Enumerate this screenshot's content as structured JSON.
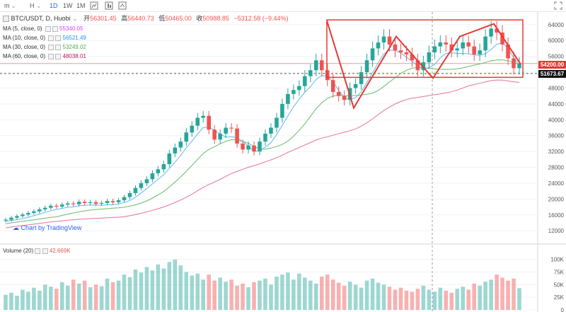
{
  "toolbar": {
    "items": [
      "m",
      "H",
      "1D",
      "1W",
      "1M"
    ],
    "active": "1D"
  },
  "header": {
    "symbol": "BTC/USDT, D, Huobi",
    "open_label": "开",
    "open": "56301.45",
    "high_label": "高",
    "high": "56440.73",
    "low_label": "低",
    "low": "50465.00",
    "close_label": "收",
    "close": "50988.85",
    "change": "−5312.58 (−9.44%)"
  },
  "indicators": [
    {
      "label": "MA (5, close, 0)",
      "value": "55340.05",
      "color": "#e040fb"
    },
    {
      "label": "MA (10, close, 0)",
      "value": "56521.49",
      "color": "#2196f3"
    },
    {
      "label": "MA (30, close, 0)",
      "value": "53249.02",
      "color": "#4caf50"
    },
    {
      "label": "MA (60, close, 0)",
      "value": "48038.01",
      "color": "#c2185b"
    }
  ],
  "volume_legend": {
    "label": "Volume (20)",
    "value": "42.669K",
    "color": "#ef5350"
  },
  "watermark": "Chart by TradingView",
  "price_tags": {
    "upper": "54200.00",
    "lower": "51673.67"
  },
  "colors": {
    "up": "#26a69a",
    "down": "#ef5350",
    "pattern": "#e53935",
    "ma5": "#e040fb",
    "ma10": "#64b5f6",
    "ma30": "#66bb6a",
    "ma60": "#e57399"
  },
  "chart_data": {
    "type": "candlestick",
    "price_axis_ticks": [
      12000,
      16000,
      20000,
      24000,
      28000,
      32000,
      36000,
      40000,
      44000,
      48000,
      52000,
      56000,
      60000,
      64000
    ],
    "price_range": [
      9000,
      67000
    ],
    "volume_axis_ticks": [
      "0",
      "25K",
      "50K",
      "75K",
      "100K"
    ],
    "volume_range": [
      0,
      115
    ],
    "series": [
      {
        "name": "price_close_approx",
        "values": [
          14800,
          15300,
          15700,
          16100,
          16500,
          16900,
          17400,
          17800,
          18300,
          18100,
          18600,
          18900,
          18700,
          19300,
          19000,
          19200,
          18800,
          19000,
          19500,
          19200,
          19700,
          20500,
          21500,
          22800,
          24000,
          25000,
          26500,
          27500,
          28800,
          31500,
          33000,
          34500,
          36800,
          38500,
          40500,
          41000,
          37500,
          35000,
          36500,
          38000,
          37800,
          34000,
          32500,
          33500,
          32000,
          34500,
          36500,
          38000,
          40500,
          44000,
          46500,
          47500,
          48500,
          51000,
          52500,
          55000,
          52500,
          50000,
          47000,
          46000,
          45000,
          48000,
          49000,
          52000,
          55000,
          58000,
          59500,
          61000,
          59000,
          57500,
          57000,
          56500,
          55000,
          52500,
          54500,
          57000,
          58500,
          59500,
          59000,
          57500,
          58000,
          59500,
          58500,
          56500,
          57500,
          61000,
          63000,
          62000,
          59000,
          55500,
          53000,
          54200
        ]
      },
      {
        "name": "volume_approx",
        "values": [
          30,
          34,
          28,
          40,
          36,
          44,
          38,
          50,
          46,
          42,
          55,
          48,
          60,
          52,
          58,
          45,
          50,
          47,
          62,
          55,
          58,
          70,
          65,
          80,
          74,
          85,
          78,
          90,
          82,
          95,
          100,
          88,
          75,
          68,
          72,
          60,
          70,
          58,
          64,
          56,
          60,
          48,
          52,
          45,
          55,
          58,
          62,
          50,
          66,
          70,
          74,
          60,
          72,
          64,
          58,
          52,
          66,
          70,
          60,
          54,
          48,
          56,
          50,
          44,
          58,
          62,
          54,
          50,
          46,
          40,
          44,
          38,
          36,
          42,
          48,
          40,
          36,
          44,
          38,
          34,
          42,
          46,
          40,
          52,
          48,
          56,
          60,
          70,
          64,
          58,
          62,
          43
        ]
      }
    ],
    "annotations": [
      "rectangle range box",
      "W zigzag pattern line"
    ]
  }
}
